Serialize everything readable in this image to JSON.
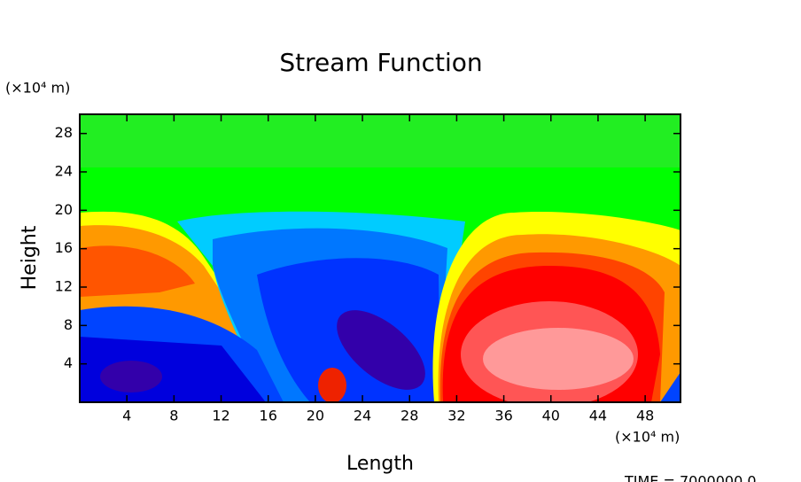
{
  "chart_data": {
    "type": "contour",
    "title": "Stream Function",
    "x_label": "Length",
    "y_label": "Height",
    "x_unit": "(×10⁴ m)",
    "y_unit": "(×10⁴ m)",
    "xlim": [
      0,
      51
    ],
    "ylim": [
      0,
      30
    ],
    "xticks": [
      4,
      8,
      12,
      16,
      20,
      24,
      28,
      32,
      36,
      40,
      44,
      48
    ],
    "yticks": [
      4,
      8,
      12,
      16,
      20,
      24,
      28
    ],
    "annotation": "TIME = 7000000.0"
  }
}
